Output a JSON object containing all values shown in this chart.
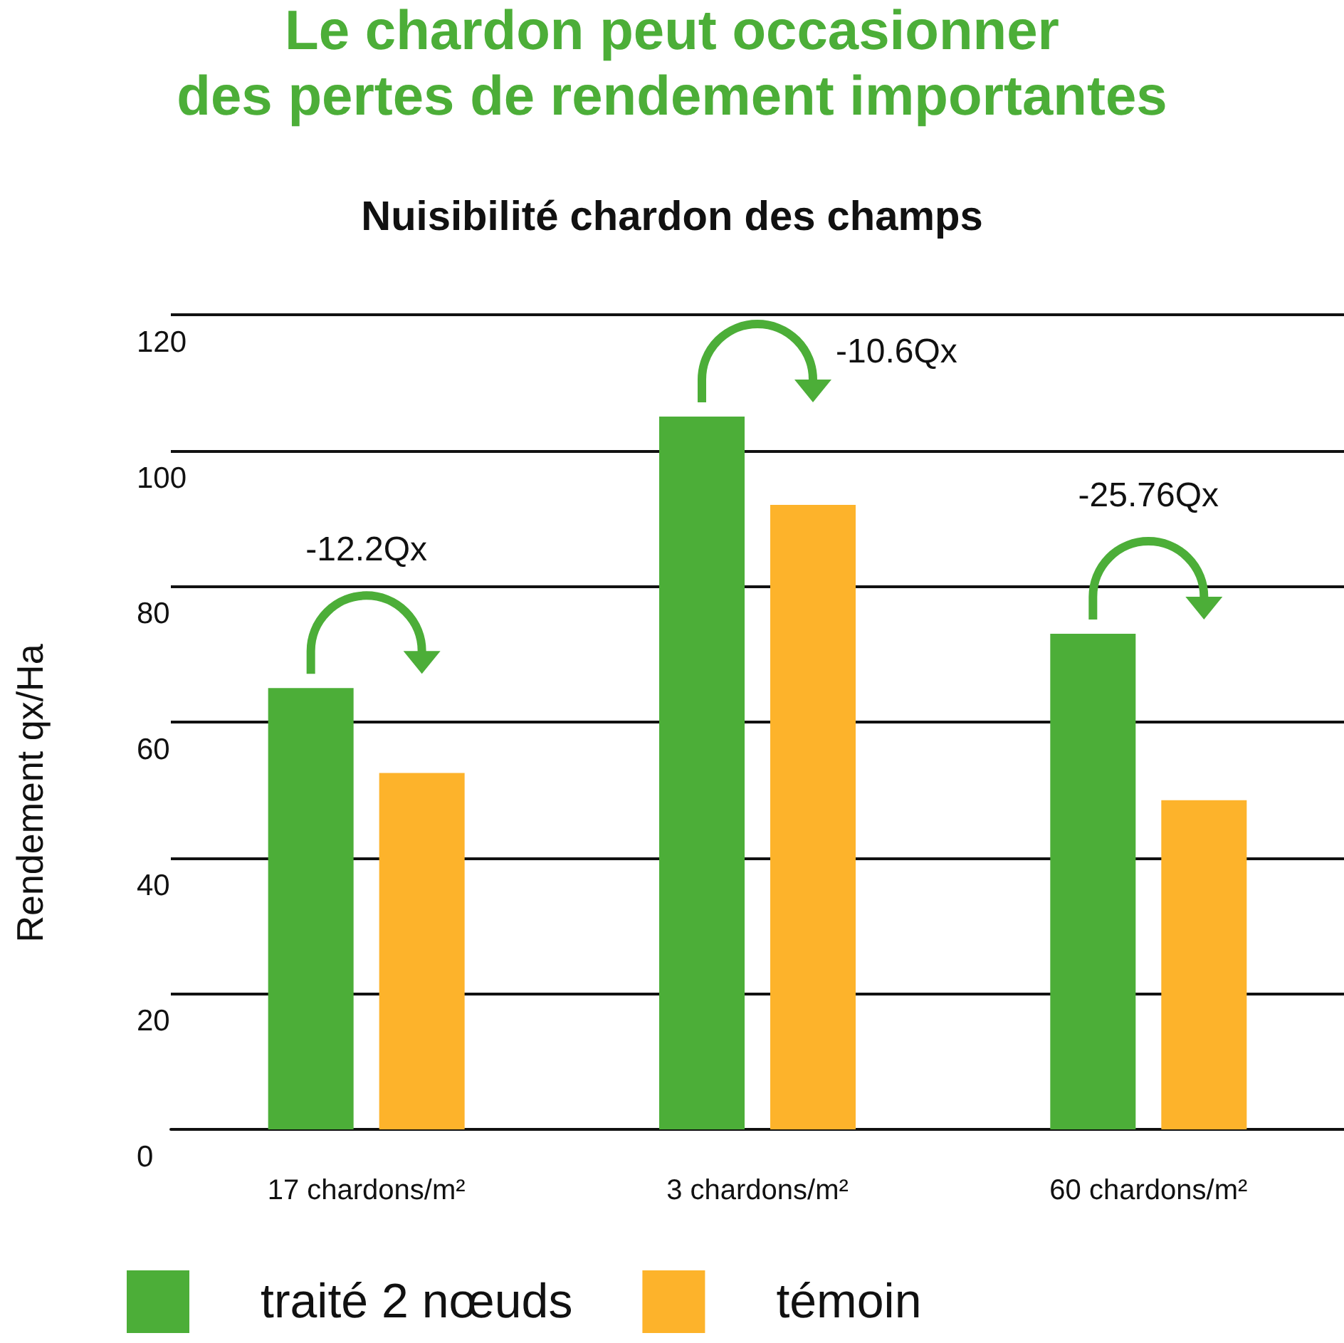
{
  "chart_data": {
    "type": "bar",
    "title": "Le chardon peut occasionner\ndes pertes de rendement importantes",
    "subtitle": "Nuisibilité chardon des champs",
    "ylabel": "Rendement qx/Ha",
    "categories": [
      "17 chardons/m²",
      "3 chardons/m²",
      "60 chardons/m²"
    ],
    "series": [
      {
        "name": "traité 2 nœuds",
        "color": "#4cae38",
        "values": [
          65,
          105,
          73
        ]
      },
      {
        "name": "témoin",
        "color": "#fdb32b",
        "values": [
          52.5,
          92,
          48.5
        ]
      }
    ],
    "ylim": [
      0,
      120
    ],
    "yticks": [
      0,
      20,
      40,
      60,
      80,
      100,
      120
    ],
    "grid": "y",
    "legend": "bottom left",
    "annotations": [
      "-12.2Qx",
      "-10.6Qx",
      "-25.76Qx"
    ]
  }
}
